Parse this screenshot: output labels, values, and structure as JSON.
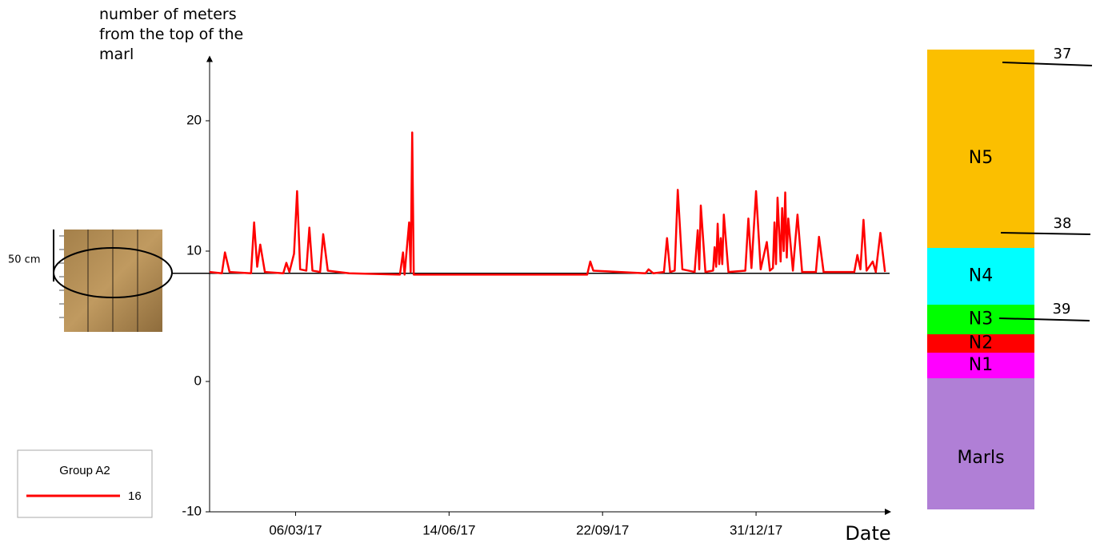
{
  "chart_data": {
    "type": "line",
    "y_label": "number of meters\nfrom the top of the\nmarl",
    "x_label": "Date",
    "legend_title": "Group A2",
    "xlim": [
      "2017-01-09",
      "2018-03-28"
    ],
    "xticks": [
      {
        "value": "2017-03-06",
        "label": "06/03/17"
      },
      {
        "value": "2017-06-14",
        "label": "14/06/17"
      },
      {
        "value": "2017-09-22",
        "label": "22/09/17"
      },
      {
        "value": "2017-12-31",
        "label": "31/12/17"
      }
    ],
    "ylim": [
      -10,
      25
    ],
    "yticks": [
      -10,
      0,
      10,
      20
    ],
    "reference_line": 8.3,
    "x": [
      "2017-01-09",
      "2017-01-17",
      "2017-01-19",
      "2017-01-22",
      "2017-02-05",
      "2017-02-07",
      "2017-02-09",
      "2017-02-11",
      "2017-02-14",
      "2017-02-26",
      "2017-02-28",
      "2017-03-02",
      "2017-03-05",
      "2017-03-07",
      "2017-03-09",
      "2017-03-13",
      "2017-03-15",
      "2017-03-17",
      "2017-03-22",
      "2017-03-24",
      "2017-03-27",
      "2017-04-10",
      "2017-05-13",
      "2017-05-15",
      "2017-05-16",
      "2017-05-19",
      "2017-05-20",
      "2017-05-21",
      "2017-05-22",
      "2017-09-12",
      "2017-09-14",
      "2017-09-16",
      "2017-10-20",
      "2017-10-22",
      "2017-10-25",
      "2017-11-01",
      "2017-11-03",
      "2017-11-05",
      "2017-11-08",
      "2017-11-10",
      "2017-11-13",
      "2017-11-21",
      "2017-11-23",
      "2017-11-24",
      "2017-11-25",
      "2017-11-28",
      "2017-12-03",
      "2017-12-04",
      "2017-12-05",
      "2017-12-06",
      "2017-12-07",
      "2017-12-08",
      "2017-12-09",
      "2017-12-10",
      "2017-12-13",
      "2017-12-24",
      "2017-12-26",
      "2017-12-28",
      "2017-12-31",
      "2018-01-03",
      "2018-01-07",
      "2018-01-09",
      "2018-01-11",
      "2018-01-12",
      "2018-01-13",
      "2018-01-14",
      "2018-01-16",
      "2018-01-17",
      "2018-01-18",
      "2018-01-19",
      "2018-01-20",
      "2018-01-21",
      "2018-01-24",
      "2018-01-27",
      "2018-01-30",
      "2018-02-08",
      "2018-02-10",
      "2018-02-13",
      "2018-03-05",
      "2018-03-07",
      "2018-03-09",
      "2018-03-11",
      "2018-03-13",
      "2018-03-17",
      "2018-03-19",
      "2018-03-22",
      "2018-03-25"
    ],
    "series": [
      {
        "name": "16",
        "color": "#ff0000",
        "values": [
          8.4,
          8.3,
          9.9,
          8.4,
          8.3,
          12.2,
          8.8,
          10.5,
          8.4,
          8.3,
          9.1,
          8.4,
          9.8,
          14.6,
          8.6,
          8.5,
          11.8,
          8.5,
          8.4,
          11.3,
          8.5,
          8.3,
          8.2,
          9.9,
          8.2,
          12.2,
          8.4,
          19.1,
          8.2,
          8.2,
          9.2,
          8.5,
          8.3,
          8.6,
          8.3,
          8.4,
          11.0,
          8.4,
          8.5,
          14.7,
          8.6,
          8.4,
          11.6,
          8.6,
          13.5,
          8.4,
          8.5,
          10.3,
          8.8,
          12.1,
          9.0,
          11.0,
          9.0,
          12.8,
          8.4,
          8.5,
          12.5,
          8.7,
          14.6,
          8.6,
          10.7,
          8.5,
          8.7,
          12.2,
          9.0,
          14.1,
          9.2,
          13.3,
          10.0,
          14.5,
          9.5,
          12.5,
          8.5,
          12.8,
          8.4,
          8.4,
          11.1,
          8.4,
          8.4,
          9.7,
          8.6,
          12.4,
          8.5,
          9.2,
          8.4,
          11.4,
          8.4
        ]
      }
    ]
  },
  "photo_scale_label": "50 cm",
  "strata": [
    {
      "label": "N5",
      "color": "#fbbf00"
    },
    {
      "label": "N4",
      "color": "#00ffff"
    },
    {
      "label": "N3",
      "color": "#00ff00"
    },
    {
      "label": "N2",
      "color": "#ff0000"
    },
    {
      "label": "N1",
      "color": "#ff00ff"
    },
    {
      "label": "Marls",
      "color": "#b07fd6"
    }
  ],
  "markers": [
    "37",
    "38",
    "39"
  ]
}
